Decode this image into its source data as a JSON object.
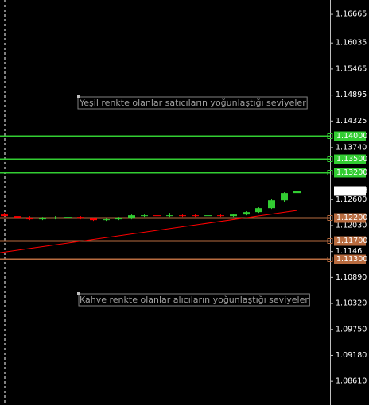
{
  "chart_data": {
    "type": "candlestick",
    "ylim": [
      1.0809,
      1.1698
    ],
    "yticks": [
      1.16665,
      1.16035,
      1.15465,
      1.14895,
      1.14325,
      {
        "value": 1.1374,
        "label": "1.13740"
      },
      {
        "value": 1.126,
        "label": "1.12600"
      },
      {
        "value": 1.1203,
        "label": "1.12030"
      },
      1.1146,
      {
        "value": 1.1089,
        "label": "1.10890"
      },
      {
        "value": 1.1032,
        "label": "1.10320"
      },
      {
        "value": 1.0975,
        "label": "1.09750"
      },
      {
        "value": 1.0918,
        "label": "1.09180"
      },
      {
        "value": 1.0861,
        "label": "1.08610"
      }
    ],
    "up_color": "#32cd32",
    "down_color": "#ff0000",
    "candles": {
      "open": [
        1.12271,
        1.12236,
        1.12202,
        1.12167,
        1.12184,
        1.12202,
        1.12219,
        1.12184,
        1.12149,
        1.12167,
        1.12184,
        1.12236,
        1.12254,
        1.12236,
        1.12254,
        1.12254,
        1.12236,
        1.12254,
        1.12236,
        1.12271,
        1.12323,
        1.1241,
        1.12584,
        1.12742
      ],
      "high": [
        1.12306,
        1.12271,
        1.12236,
        1.12219,
        1.12236,
        1.12236,
        1.12236,
        1.12202,
        1.12184,
        1.12219,
        1.12271,
        1.12271,
        1.12271,
        1.12306,
        1.12271,
        1.12271,
        1.12271,
        1.12271,
        1.12289,
        1.12341,
        1.12428,
        1.1262,
        1.1276,
        1.12969
      ],
      "low": [
        1.12236,
        1.12202,
        1.12149,
        1.12149,
        1.12167,
        1.12184,
        1.12167,
        1.12132,
        1.12132,
        1.12149,
        1.12167,
        1.12219,
        1.12219,
        1.12219,
        1.12219,
        1.12219,
        1.12219,
        1.12219,
        1.12219,
        1.12254,
        1.12306,
        1.12393,
        1.1255,
        1.12707
      ],
      "close": [
        1.12236,
        1.12202,
        1.12167,
        1.12202,
        1.12202,
        1.12219,
        1.12184,
        1.12149,
        1.12167,
        1.12202,
        1.12254,
        1.12254,
        1.12236,
        1.12254,
        1.12236,
        1.12236,
        1.12254,
        1.12236,
        1.12271,
        1.12323,
        1.1241,
        1.12584,
        1.12742,
        1.12793
      ]
    },
    "trend_line": [
      1.11434,
      1.12358
    ],
    "trend_color": "#ff0000",
    "levels": [
      {
        "value": 1.14,
        "label": "1.14000",
        "color": "#32cd32"
      },
      {
        "value": 1.135,
        "label": "1.13500",
        "color": "#32cd32"
      },
      {
        "value": 1.132,
        "label": "1.13200",
        "color": "#32cd32"
      },
      {
        "value": 1.12793,
        "color": "#c0c0c0"
      },
      {
        "value": 1.122,
        "label": "1.12200",
        "color": "#b86b3f"
      },
      {
        "value": 1.117,
        "label": "1.11700",
        "color": "#b86b3f"
      },
      {
        "value": 1.113,
        "label": "1.11300",
        "color": "#b86b3f"
      }
    ],
    "annotations": [
      "Yeşil renkte olanlar satıcıların yoğunlaştığı seviyeler",
      "Kahve renkte olanlar alıcıların yoğunlaştığı seviyeler"
    ]
  }
}
